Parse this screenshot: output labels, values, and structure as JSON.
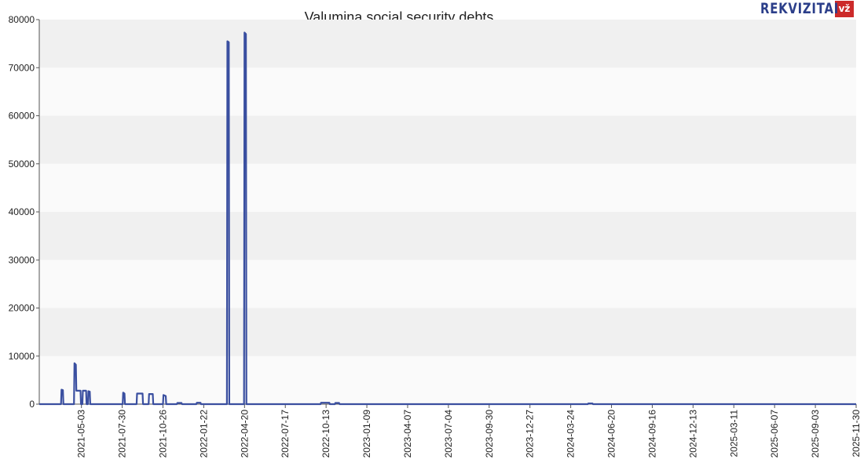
{
  "logo": {
    "text": "REKVIZITAI",
    "badge": "vž"
  },
  "chart_data": {
    "type": "line",
    "title": "Valumina social security debts",
    "xlabel": "",
    "ylabel": "",
    "ylim": [
      0,
      80000
    ],
    "xlim": [
      "2021-02-01",
      "2025-11-30"
    ],
    "yticks": [
      0,
      10000,
      20000,
      30000,
      40000,
      50000,
      60000,
      70000,
      80000
    ],
    "ytick_labels": [
      "0",
      "10000",
      "20000",
      "30000",
      "40000",
      "50000",
      "60000",
      "70000",
      "80000"
    ],
    "xticks": [
      "2021-05-03",
      "2021-07-30",
      "2021-10-26",
      "2022-01-22",
      "2022-04-20",
      "2022-07-17",
      "2022-10-13",
      "2023-01-09",
      "2023-04-07",
      "2023-07-04",
      "2023-09-30",
      "2023-12-27",
      "2024-03-24",
      "2024-06-20",
      "2024-09-16",
      "2024-12-13",
      "2025-03-11",
      "2025-06-07",
      "2025-09-03",
      "2025-11-30"
    ],
    "grid": "horizontal bands",
    "line_color": "#3a4fa0",
    "band_colors": [
      "#f0f0f0",
      "#fafafa"
    ],
    "series": [
      {
        "points": [
          [
            "2021-02-01",
            0
          ],
          [
            "2021-03-20",
            0
          ],
          [
            "2021-03-21",
            3000
          ],
          [
            "2021-03-24",
            2900
          ],
          [
            "2021-03-25",
            0
          ],
          [
            "2021-04-17",
            0
          ],
          [
            "2021-04-18",
            8500
          ],
          [
            "2021-04-21",
            8200
          ],
          [
            "2021-04-22",
            2800
          ],
          [
            "2021-05-01",
            2800
          ],
          [
            "2021-05-02",
            0
          ],
          [
            "2021-05-05",
            0
          ],
          [
            "2021-05-06",
            2800
          ],
          [
            "2021-05-13",
            2800
          ],
          [
            "2021-05-14",
            0
          ],
          [
            "2021-05-17",
            0
          ],
          [
            "2021-05-18",
            2700
          ],
          [
            "2021-05-21",
            2600
          ],
          [
            "2021-05-22",
            0
          ],
          [
            "2021-07-31",
            0
          ],
          [
            "2021-08-01",
            2400
          ],
          [
            "2021-08-04",
            2200
          ],
          [
            "2021-08-05",
            0
          ],
          [
            "2021-08-30",
            0
          ],
          [
            "2021-08-31",
            2200
          ],
          [
            "2021-09-12",
            2200
          ],
          [
            "2021-09-13",
            0
          ],
          [
            "2021-09-25",
            0
          ],
          [
            "2021-09-26",
            2100
          ],
          [
            "2021-10-04",
            2100
          ],
          [
            "2021-10-05",
            0
          ],
          [
            "2021-10-26",
            0
          ],
          [
            "2021-10-27",
            1900
          ],
          [
            "2021-11-01",
            1700
          ],
          [
            "2021-11-02",
            0
          ],
          [
            "2021-11-25",
            0
          ],
          [
            "2021-11-26",
            250
          ],
          [
            "2021-12-05",
            250
          ],
          [
            "2021-12-06",
            0
          ],
          [
            "2022-01-06",
            0
          ],
          [
            "2022-01-07",
            300
          ],
          [
            "2022-01-15",
            300
          ],
          [
            "2022-01-16",
            0
          ],
          [
            "2022-03-13",
            0
          ],
          [
            "2022-03-14",
            75500
          ],
          [
            "2022-03-17",
            75300
          ],
          [
            "2022-03-18",
            0
          ],
          [
            "2022-04-19",
            0
          ],
          [
            "2022-04-20",
            77300
          ],
          [
            "2022-04-23",
            77000
          ],
          [
            "2022-04-24",
            0
          ],
          [
            "2022-10-01",
            0
          ],
          [
            "2022-10-02",
            300
          ],
          [
            "2022-10-20",
            300
          ],
          [
            "2022-10-21",
            0
          ],
          [
            "2022-11-01",
            0
          ],
          [
            "2022-11-02",
            250
          ],
          [
            "2022-11-10",
            250
          ],
          [
            "2022-11-11",
            0
          ],
          [
            "2024-04-30",
            0
          ],
          [
            "2024-05-01",
            150
          ],
          [
            "2024-05-10",
            150
          ],
          [
            "2024-05-11",
            0
          ],
          [
            "2025-11-30",
            0
          ]
        ]
      }
    ]
  }
}
